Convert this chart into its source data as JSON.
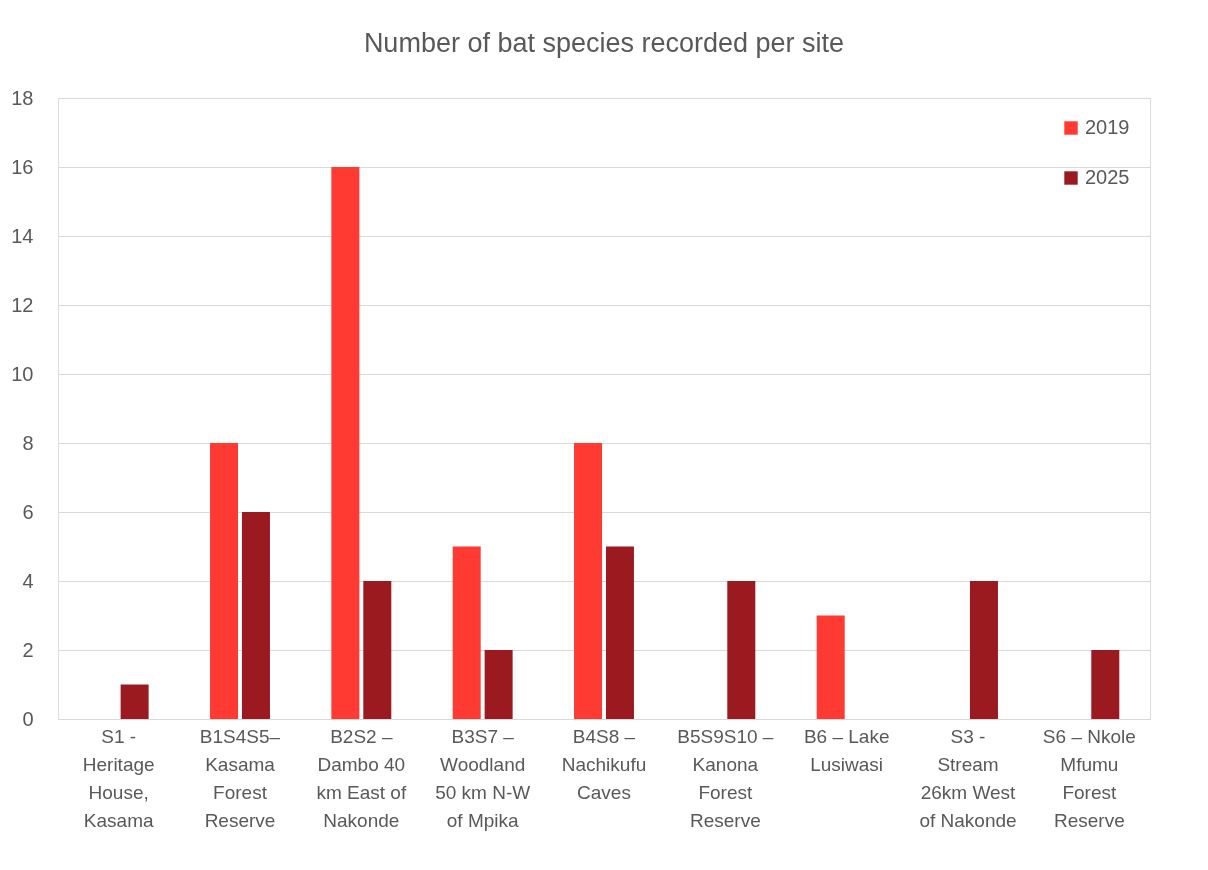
{
  "chart_data": {
    "type": "bar",
    "title": "Number of bat species recorded per site",
    "categories": [
      "S1 - Heritage House, Kasama",
      "B1S4S5– Kasama Forest Reserve",
      "B2S2 – Dambo 40 km East of Nakonde",
      "B3S7 – Woodland 50 km N-W of Mpika",
      "B4S8 – Nachikufu Caves",
      "B5S9S10 – Kanona Forest Reserve",
      "B6 – Lake Lusiwasi",
      "S3 - Stream 26km West of Nakonde",
      "S6 – Nkole Mfumu Forest Reserve"
    ],
    "series": [
      {
        "name": "2019",
        "color": "#ff3a32",
        "values": [
          null,
          8,
          16,
          5,
          8,
          null,
          3,
          null,
          null
        ]
      },
      {
        "name": "2025",
        "color": "#9b1a1f",
        "values": [
          1,
          6,
          4,
          2,
          5,
          4,
          null,
          4,
          2
        ]
      }
    ],
    "ylim": [
      0,
      18
    ],
    "yticks": [
      0,
      2,
      4,
      6,
      8,
      10,
      12,
      14,
      16,
      18
    ],
    "grid": "y",
    "legend": "top right"
  }
}
